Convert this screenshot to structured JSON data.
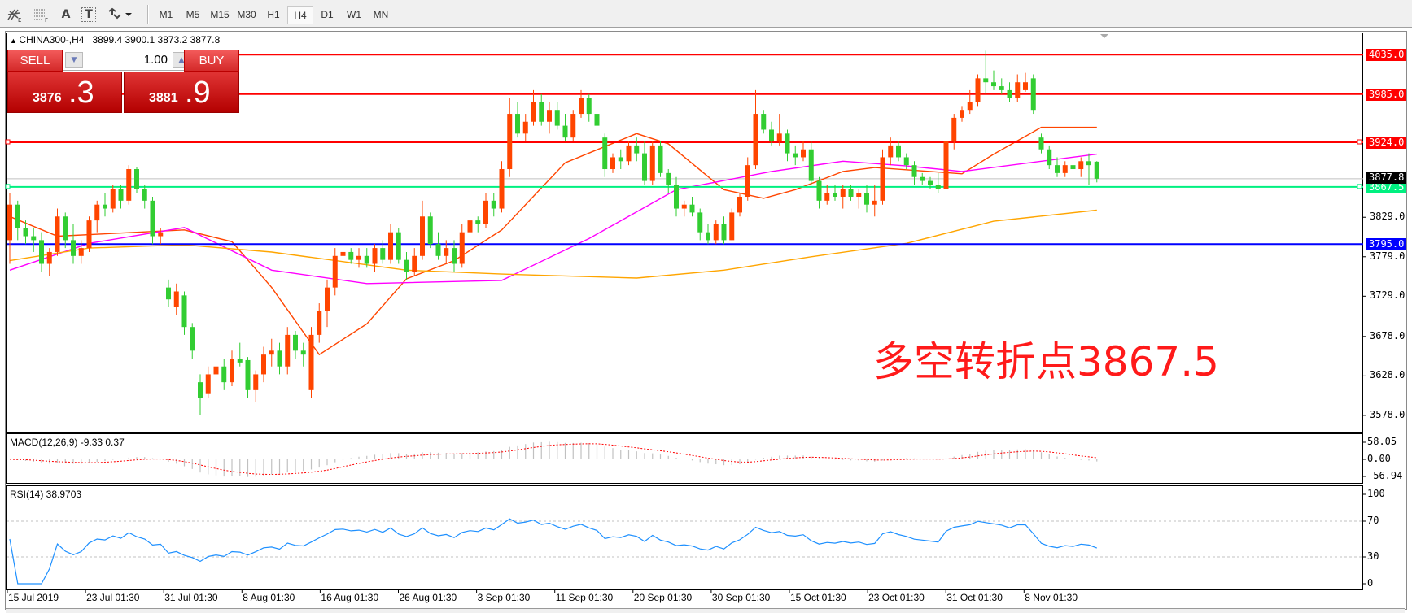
{
  "toolbar": {
    "icons": [
      "chart-tools-icon",
      "fibonacci-grid-icon",
      "text-icon",
      "text-label-icon",
      "arrows-dropdown-icon"
    ],
    "icon_glyphs": {
      "text": "A",
      "text_label": "T"
    },
    "timeframes": [
      "M1",
      "M5",
      "M15",
      "M30",
      "H1",
      "H4",
      "D1",
      "W1",
      "MN"
    ],
    "active_timeframe": "H4"
  },
  "chart": {
    "symbol": "CHINA300-,H4",
    "ohlc_readout": "3899.4 3900.1 3873.2 3877.8"
  },
  "trade_panel": {
    "sell_label": "SELL",
    "buy_label": "BUY",
    "lots": "1.00",
    "sell_price_main": "3876",
    "sell_price_frac": ".3",
    "buy_price_main": "3881",
    "buy_price_frac": ".9"
  },
  "price_axis": [
    "3829.0",
    "3779.0",
    "3729.0",
    "3678.0",
    "3628.0",
    "3578.0"
  ],
  "levels": [
    {
      "price": 4035.0,
      "label": "4035.0",
      "color": "#ff0000"
    },
    {
      "price": 3985.0,
      "label": "3985.0",
      "color": "#ff0000"
    },
    {
      "price": 3924.0,
      "label": "3924.0",
      "color": "#ff0000"
    },
    {
      "price": 3867.5,
      "label": "3867.5",
      "color": "#00f080"
    },
    {
      "price": 3795.0,
      "label": "3795.0",
      "color": "#0000ff"
    }
  ],
  "bid": {
    "price": 3877.8,
    "label": "3877.8",
    "color": "#000000"
  },
  "annotation": "多空转折点3867.5",
  "macd": {
    "label": "MACD(12,26,9) -9.33 0.37",
    "axis": [
      "58.05",
      "0.00",
      "-56.94"
    ],
    "range": [
      -56.94,
      58.05
    ]
  },
  "rsi": {
    "label": "RSI(14) 38.9703",
    "axis": [
      "100",
      "70",
      "30",
      "0"
    ],
    "levels": [
      70,
      30
    ]
  },
  "time_labels": [
    "15 Jul 2019",
    "23 Jul 01:30",
    "31 Jul 01:30",
    "8 Aug 01:30",
    "16 Aug 01:30",
    "26 Aug 01:30",
    "3 Sep 01:30",
    "11 Sep 01:30",
    "20 Sep 01:30",
    "30 Sep 01:30",
    "15 Oct 01:30",
    "23 Oct 01:30",
    "31 Oct 01:30",
    "8 Nov 01:30"
  ],
  "colors": {
    "up": "#ff4500",
    "down": "#32cd32",
    "ma_fast": "#ff4500",
    "ma_mid": "#ff00ff",
    "ma_slow": "#ffa500",
    "rsi": "#1e90ff",
    "macd_hist": "#c0c0c0",
    "macd_signal": "#ff0000"
  },
  "chart_data": {
    "type": "candlestick",
    "ylim": [
      3578.0,
      4035.0
    ],
    "ohlc": [
      [
        3800,
        3860,
        3770,
        3845
      ],
      [
        3845,
        3850,
        3800,
        3815
      ],
      [
        3815,
        3825,
        3795,
        3805
      ],
      [
        3805,
        3815,
        3785,
        3800
      ],
      [
        3800,
        3810,
        3760,
        3770
      ],
      [
        3770,
        3790,
        3755,
        3785
      ],
      [
        3785,
        3840,
        3780,
        3830
      ],
      [
        3830,
        3835,
        3790,
        3800
      ],
      [
        3800,
        3820,
        3770,
        3780
      ],
      [
        3780,
        3800,
        3770,
        3790
      ],
      [
        3790,
        3830,
        3785,
        3825
      ],
      [
        3825,
        3850,
        3810,
        3845
      ],
      [
        3845,
        3860,
        3830,
        3840
      ],
      [
        3840,
        3870,
        3835,
        3865
      ],
      [
        3865,
        3870,
        3840,
        3850
      ],
      [
        3850,
        3895,
        3845,
        3890
      ],
      [
        3890,
        3893,
        3860,
        3865
      ],
      [
        3865,
        3870,
        3840,
        3850
      ],
      [
        3850,
        3855,
        3795,
        3805
      ],
      [
        3805,
        3815,
        3795,
        3810
      ],
      [
        3740,
        3750,
        3715,
        3725
      ],
      [
        3715,
        3745,
        3705,
        3735
      ],
      [
        3730,
        3735,
        3680,
        3690
      ],
      [
        3690,
        3695,
        3650,
        3660
      ],
      [
        3620,
        3630,
        3578,
        3600
      ],
      [
        3605,
        3640,
        3600,
        3630
      ],
      [
        3630,
        3650,
        3615,
        3640
      ],
      [
        3640,
        3650,
        3610,
        3620
      ],
      [
        3620,
        3660,
        3615,
        3650
      ],
      [
        3650,
        3670,
        3640,
        3645
      ],
      [
        3648,
        3652,
        3600,
        3610
      ],
      [
        3610,
        3635,
        3595,
        3630
      ],
      [
        3630,
        3665,
        3620,
        3655
      ],
      [
        3655,
        3675,
        3640,
        3660
      ],
      [
        3660,
        3670,
        3630,
        3640
      ],
      [
        3640,
        3690,
        3630,
        3680
      ],
      [
        3680,
        3685,
        3650,
        3660
      ],
      [
        3660,
        3670,
        3640,
        3655
      ],
      [
        3610,
        3690,
        3600,
        3680
      ],
      [
        3680,
        3720,
        3670,
        3710
      ],
      [
        3710,
        3750,
        3690,
        3740
      ],
      [
        3740,
        3790,
        3730,
        3780
      ],
      [
        3780,
        3795,
        3770,
        3785
      ],
      [
        3785,
        3790,
        3770,
        3775
      ],
      [
        3775,
        3790,
        3765,
        3780
      ],
      [
        3780,
        3790,
        3765,
        3770
      ],
      [
        3770,
        3795,
        3760,
        3790
      ],
      [
        3790,
        3800,
        3770,
        3775
      ],
      [
        3775,
        3820,
        3770,
        3810
      ],
      [
        3810,
        3815,
        3770,
        3775
      ],
      [
        3775,
        3785,
        3750,
        3760
      ],
      [
        3760,
        3790,
        3755,
        3780
      ],
      [
        3780,
        3850,
        3775,
        3830
      ],
      [
        3830,
        3835,
        3790,
        3795
      ],
      [
        3795,
        3810,
        3775,
        3780
      ],
      [
        3780,
        3800,
        3770,
        3790
      ],
      [
        3790,
        3800,
        3760,
        3770
      ],
      [
        3770,
        3820,
        3765,
        3810
      ],
      [
        3810,
        3830,
        3800,
        3825
      ],
      [
        3825,
        3830,
        3810,
        3820
      ],
      [
        3820,
        3860,
        3815,
        3850
      ],
      [
        3850,
        3860,
        3830,
        3840
      ],
      [
        3840,
        3900,
        3835,
        3890
      ],
      [
        3890,
        3980,
        3880,
        3960
      ],
      [
        3960,
        3975,
        3930,
        3935
      ],
      [
        3935,
        3960,
        3925,
        3950
      ],
      [
        3950,
        3990,
        3945,
        3975
      ],
      [
        3975,
        3985,
        3945,
        3950
      ],
      [
        3950,
        3975,
        3935,
        3965
      ],
      [
        3965,
        3975,
        3940,
        3945
      ],
      [
        3945,
        3960,
        3925,
        3930
      ],
      [
        3930,
        3965,
        3925,
        3960
      ],
      [
        3960,
        3990,
        3955,
        3980
      ],
      [
        3980,
        3985,
        3950,
        3960
      ],
      [
        3960,
        3970,
        3940,
        3945
      ],
      [
        3930,
        3935,
        3880,
        3890
      ],
      [
        3890,
        3910,
        3885,
        3905
      ],
      [
        3905,
        3915,
        3890,
        3900
      ],
      [
        3900,
        3925,
        3895,
        3920
      ],
      [
        3920,
        3930,
        3900,
        3910
      ],
      [
        3910,
        3925,
        3870,
        3875
      ],
      [
        3875,
        3925,
        3870,
        3920
      ],
      [
        3920,
        3925,
        3880,
        3885
      ],
      [
        3885,
        3890,
        3860,
        3870
      ],
      [
        3870,
        3880,
        3830,
        3840
      ],
      [
        3840,
        3850,
        3830,
        3845
      ],
      [
        3845,
        3855,
        3830,
        3835
      ],
      [
        3835,
        3840,
        3800,
        3810
      ],
      [
        3810,
        3820,
        3795,
        3800
      ],
      [
        3800,
        3825,
        3795,
        3820
      ],
      [
        3820,
        3830,
        3795,
        3800
      ],
      [
        3800,
        3840,
        3800,
        3835
      ],
      [
        3835,
        3860,
        3830,
        3855
      ],
      [
        3855,
        3905,
        3850,
        3895
      ],
      [
        3895,
        3990,
        3890,
        3960
      ],
      [
        3960,
        3965,
        3935,
        3940
      ],
      [
        3940,
        3950,
        3920,
        3925
      ],
      [
        3925,
        3960,
        3920,
        3935
      ],
      [
        3935,
        3940,
        3900,
        3910
      ],
      [
        3910,
        3920,
        3895,
        3905
      ],
      [
        3905,
        3925,
        3900,
        3915
      ],
      [
        3915,
        3925,
        3870,
        3875
      ],
      [
        3875,
        3880,
        3840,
        3850
      ],
      [
        3850,
        3870,
        3845,
        3860
      ],
      [
        3860,
        3870,
        3850,
        3855
      ],
      [
        3855,
        3870,
        3840,
        3865
      ],
      [
        3865,
        3870,
        3850,
        3855
      ],
      [
        3855,
        3865,
        3840,
        3860
      ],
      [
        3860,
        3870,
        3835,
        3845
      ],
      [
        3845,
        3870,
        3830,
        3850
      ],
      [
        3850,
        3915,
        3845,
        3905
      ],
      [
        3905,
        3930,
        3895,
        3920
      ],
      [
        3920,
        3925,
        3900,
        3905
      ],
      [
        3905,
        3910,
        3890,
        3895
      ],
      [
        3895,
        3900,
        3870,
        3880
      ],
      [
        3880,
        3885,
        3870,
        3875
      ],
      [
        3875,
        3880,
        3865,
        3870
      ],
      [
        3870,
        3885,
        3860,
        3865
      ],
      [
        3865,
        3935,
        3860,
        3925
      ],
      [
        3925,
        3960,
        3915,
        3955
      ],
      [
        3955,
        3970,
        3950,
        3965
      ],
      [
        3965,
        3990,
        3960,
        3975
      ],
      [
        3975,
        4010,
        3970,
        4005
      ],
      [
        4005,
        4040,
        3985,
        4000
      ],
      [
        4000,
        4015,
        3990,
        3995
      ],
      [
        3995,
        4005,
        3985,
        3990
      ],
      [
        3990,
        4000,
        3975,
        3980
      ],
      [
        3980,
        4010,
        3975,
        4000
      ],
      [
        3990,
        4012,
        3988,
        4000
      ],
      [
        4005,
        4010,
        3960,
        3965
      ],
      [
        3930,
        3935,
        3910,
        3915
      ],
      [
        3915,
        3920,
        3890,
        3895
      ],
      [
        3895,
        3905,
        3880,
        3885
      ],
      [
        3885,
        3900,
        3880,
        3895
      ],
      [
        3895,
        3905,
        3880,
        3890
      ],
      [
        3890,
        3905,
        3880,
        3900
      ],
      [
        3900,
        3910,
        3870,
        3895
      ],
      [
        3899.4,
        3900.1,
        3873.2,
        3877.8
      ]
    ],
    "moving_averages": [
      {
        "color": "#ff4500",
        "points": [
          [
            0,
            3830
          ],
          [
            6,
            3805
          ],
          [
            16,
            3810
          ],
          [
            22,
            3813
          ],
          [
            28,
            3798
          ],
          [
            33,
            3740
          ],
          [
            39,
            3655
          ],
          [
            45,
            3694
          ],
          [
            50,
            3751
          ],
          [
            56,
            3774
          ],
          [
            62,
            3813
          ],
          [
            70,
            3898
          ],
          [
            79,
            3935
          ],
          [
            83,
            3922
          ],
          [
            90,
            3864
          ],
          [
            95,
            3853
          ],
          [
            99,
            3864
          ],
          [
            105,
            3887
          ],
          [
            109,
            3892
          ],
          [
            116,
            3887
          ],
          [
            120,
            3884
          ],
          [
            124,
            3909
          ],
          [
            130,
            3943
          ],
          [
            137,
            3943
          ]
        ]
      },
      {
        "color": "#ff00ff",
        "points": [
          [
            0,
            3762
          ],
          [
            10,
            3796
          ],
          [
            22,
            3816
          ],
          [
            33,
            3762
          ],
          [
            45,
            3745
          ],
          [
            62,
            3749
          ],
          [
            73,
            3802
          ],
          [
            84,
            3864
          ],
          [
            96,
            3887
          ],
          [
            105,
            3900
          ],
          [
            113,
            3894
          ],
          [
            120,
            3887
          ],
          [
            137,
            3909
          ]
        ]
      },
      {
        "color": "#ffa500",
        "points": [
          [
            0,
            3774
          ],
          [
            10,
            3790
          ],
          [
            22,
            3794
          ],
          [
            33,
            3785
          ],
          [
            50,
            3762
          ],
          [
            62,
            3757
          ],
          [
            79,
            3752
          ],
          [
            90,
            3762
          ],
          [
            101,
            3779
          ],
          [
            113,
            3796
          ],
          [
            124,
            3824
          ],
          [
            137,
            3838
          ]
        ]
      }
    ]
  }
}
